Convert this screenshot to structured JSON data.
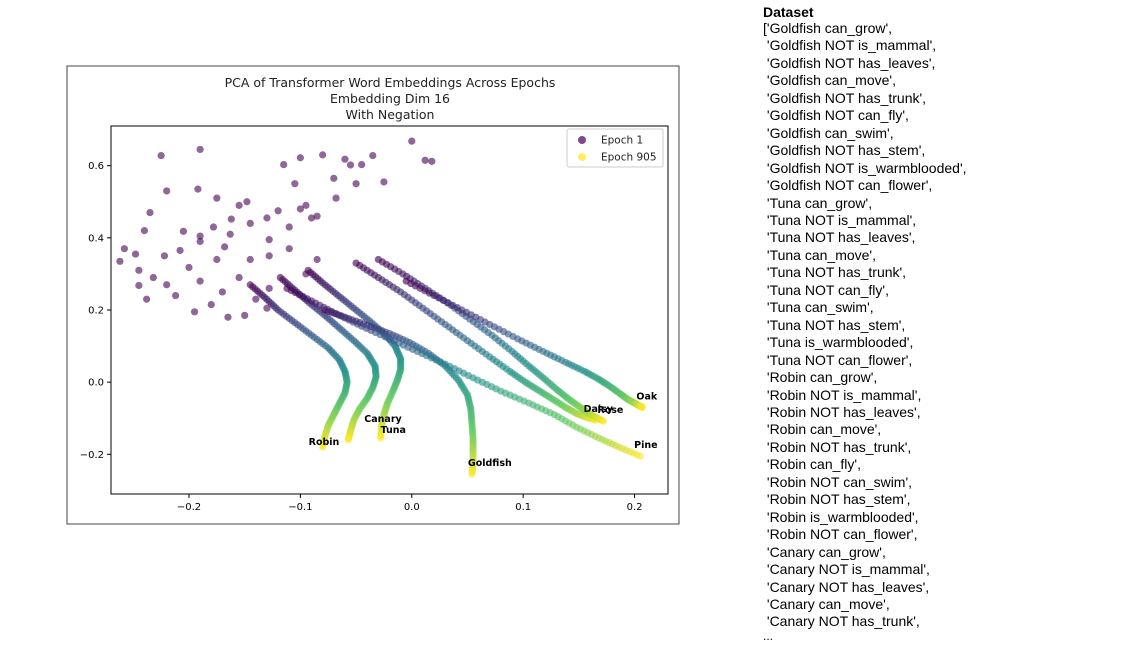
{
  "chart_data": {
    "type": "scatter",
    "title": "PCA of Transformer Word Embeddings Across Epochs",
    "subtitle_lines": [
      "Embedding Dim 16",
      "With Negation"
    ],
    "xlabel": "",
    "ylabel": "",
    "xlim": [
      -0.27,
      0.23
    ],
    "ylim": [
      -0.31,
      0.71
    ],
    "xticks": [
      -0.2,
      -0.1,
      0.0,
      0.1,
      0.2
    ],
    "xtick_labels": [
      "−0.2",
      "−0.1",
      "0.0",
      "0.1",
      "0.2"
    ],
    "yticks": [
      -0.2,
      0.0,
      0.2,
      0.4,
      0.6
    ],
    "ytick_labels": [
      "−0.2",
      "0.0",
      "0.2",
      "0.4",
      "0.6"
    ],
    "grid": false,
    "legend_position": "top-right",
    "legend": [
      {
        "label": "Epoch 1",
        "color": "#440154"
      },
      {
        "label": "Epoch 905",
        "color": "#fde725"
      }
    ],
    "colormap": "viridis",
    "trajectories": [
      {
        "word": "Robin",
        "points": [
          [
            -0.145,
            0.27
          ],
          [
            -0.132,
            0.235
          ],
          [
            -0.12,
            0.2
          ],
          [
            -0.105,
            0.165
          ],
          [
            -0.09,
            0.13
          ],
          [
            -0.075,
            0.095
          ],
          [
            -0.065,
            0.062
          ],
          [
            -0.06,
            0.03
          ],
          [
            -0.058,
            0.0
          ],
          [
            -0.06,
            -0.03
          ],
          [
            -0.065,
            -0.06
          ],
          [
            -0.07,
            -0.09
          ],
          [
            -0.075,
            -0.12
          ],
          [
            -0.078,
            -0.15
          ],
          [
            -0.08,
            -0.18
          ]
        ],
        "label_offset": [
          -14,
          -2
        ]
      },
      {
        "word": "Canary",
        "points": [
          [
            -0.118,
            0.29
          ],
          [
            -0.105,
            0.255
          ],
          [
            -0.092,
            0.22
          ],
          [
            -0.078,
            0.185
          ],
          [
            -0.065,
            0.15
          ],
          [
            -0.052,
            0.115
          ],
          [
            -0.04,
            0.08
          ],
          [
            -0.033,
            0.045
          ],
          [
            -0.032,
            0.015
          ],
          [
            -0.035,
            -0.015
          ],
          [
            -0.04,
            -0.045
          ],
          [
            -0.047,
            -0.075
          ],
          [
            -0.052,
            -0.105
          ],
          [
            -0.055,
            -0.135
          ],
          [
            -0.057,
            -0.16
          ]
        ],
        "label_offset": [
          16,
          -18
        ]
      },
      {
        "word": "Tuna",
        "points": [
          [
            -0.093,
            0.31
          ],
          [
            -0.08,
            0.275
          ],
          [
            -0.066,
            0.24
          ],
          [
            -0.052,
            0.205
          ],
          [
            -0.038,
            0.17
          ],
          [
            -0.025,
            0.135
          ],
          [
            -0.015,
            0.1
          ],
          [
            -0.01,
            0.065
          ],
          [
            -0.01,
            0.035
          ],
          [
            -0.013,
            0.005
          ],
          [
            -0.017,
            -0.025
          ],
          [
            -0.022,
            -0.06
          ],
          [
            -0.025,
            -0.09
          ],
          [
            -0.027,
            -0.12
          ],
          [
            -0.028,
            -0.155
          ]
        ],
        "label_offset": [
          0,
          -5
        ]
      },
      {
        "word": "Goldfish",
        "points": [
          [
            -0.078,
            0.2
          ],
          [
            -0.06,
            0.18
          ],
          [
            -0.04,
            0.158
          ],
          [
            -0.02,
            0.135
          ],
          [
            -0.002,
            0.11
          ],
          [
            0.015,
            0.08
          ],
          [
            0.03,
            0.045
          ],
          [
            0.042,
            0.005
          ],
          [
            0.05,
            -0.035
          ],
          [
            0.053,
            -0.075
          ],
          [
            0.054,
            -0.115
          ],
          [
            0.055,
            -0.155
          ],
          [
            0.055,
            -0.19
          ],
          [
            0.055,
            -0.225
          ],
          [
            0.054,
            -0.255
          ]
        ],
        "label_offset": [
          -4,
          -8
        ]
      },
      {
        "word": "Daisy",
        "points": [
          [
            -0.05,
            0.33
          ],
          [
            -0.03,
            0.29
          ],
          [
            -0.01,
            0.25
          ],
          [
            0.01,
            0.205
          ],
          [
            0.03,
            0.16
          ],
          [
            0.05,
            0.115
          ],
          [
            0.07,
            0.07
          ],
          [
            0.088,
            0.03
          ],
          [
            0.102,
            0.0
          ],
          [
            0.115,
            -0.025
          ],
          [
            0.127,
            -0.048
          ],
          [
            0.138,
            -0.07
          ],
          [
            0.148,
            -0.087
          ],
          [
            0.157,
            -0.098
          ],
          [
            0.165,
            -0.105
          ]
        ],
        "label_offset": [
          -12,
          -8
        ]
      },
      {
        "word": "Rose",
        "points": [
          [
            -0.03,
            0.34
          ],
          [
            -0.008,
            0.3
          ],
          [
            0.012,
            0.26
          ],
          [
            0.032,
            0.22
          ],
          [
            0.052,
            0.175
          ],
          [
            0.072,
            0.13
          ],
          [
            0.09,
            0.085
          ],
          [
            0.105,
            0.045
          ],
          [
            0.118,
            0.012
          ],
          [
            0.13,
            -0.02
          ],
          [
            0.14,
            -0.045
          ],
          [
            0.15,
            -0.067
          ],
          [
            0.158,
            -0.085
          ],
          [
            0.165,
            -0.097
          ],
          [
            0.172,
            -0.108
          ]
        ],
        "label_offset": [
          -6,
          -8
        ]
      },
      {
        "word": "Oak",
        "points": [
          [
            -0.005,
            0.28
          ],
          [
            0.02,
            0.24
          ],
          [
            0.045,
            0.2
          ],
          [
            0.07,
            0.16
          ],
          [
            0.095,
            0.12
          ],
          [
            0.118,
            0.085
          ],
          [
            0.138,
            0.055
          ],
          [
            0.155,
            0.03
          ],
          [
            0.168,
            0.008
          ],
          [
            0.178,
            -0.012
          ],
          [
            0.187,
            -0.032
          ],
          [
            0.194,
            -0.048
          ],
          [
            0.2,
            -0.058
          ],
          [
            0.204,
            -0.065
          ],
          [
            0.207,
            -0.07
          ]
        ],
        "label_offset": [
          -6,
          -8
        ]
      },
      {
        "word": "Pine",
        "points": [
          [
            -0.112,
            0.26
          ],
          [
            -0.09,
            0.225
          ],
          [
            -0.068,
            0.19
          ],
          [
            -0.045,
            0.155
          ],
          [
            -0.02,
            0.12
          ],
          [
            0.005,
            0.085
          ],
          [
            0.03,
            0.05
          ],
          [
            0.055,
            0.012
          ],
          [
            0.08,
            -0.025
          ],
          [
            0.105,
            -0.058
          ],
          [
            0.128,
            -0.09
          ],
          [
            0.148,
            -0.125
          ],
          [
            0.168,
            -0.155
          ],
          [
            0.186,
            -0.18
          ],
          [
            0.205,
            -0.205
          ]
        ],
        "label_offset": [
          -6,
          -8
        ]
      }
    ],
    "epoch1_scatter": [
      [
        -0.225,
        0.628
      ],
      [
        -0.19,
        0.645
      ],
      [
        -0.1,
        0.622
      ],
      [
        -0.08,
        0.63
      ],
      [
        -0.06,
        0.618
      ],
      [
        -0.035,
        0.628
      ],
      [
        0.0,
        0.668
      ],
      [
        0.012,
        0.615
      ],
      [
        0.018,
        0.612
      ],
      [
        -0.115,
        0.603
      ],
      [
        -0.105,
        0.55
      ],
      [
        -0.095,
        0.49
      ],
      [
        -0.09,
        0.455
      ],
      [
        -0.07,
        0.565
      ],
      [
        -0.068,
        0.51
      ],
      [
        -0.055,
        0.602
      ],
      [
        -0.05,
        0.55
      ],
      [
        -0.045,
        0.603
      ],
      [
        -0.025,
        0.555
      ],
      [
        -0.22,
        0.53
      ],
      [
        -0.192,
        0.535
      ],
      [
        -0.175,
        0.51
      ],
      [
        -0.162,
        0.452
      ],
      [
        -0.155,
        0.49
      ],
      [
        -0.148,
        0.5
      ],
      [
        -0.13,
        0.455
      ],
      [
        -0.12,
        0.475
      ],
      [
        -0.11,
        0.43
      ],
      [
        -0.1,
        0.48
      ],
      [
        -0.085,
        0.46
      ],
      [
        -0.235,
        0.47
      ],
      [
        -0.24,
        0.42
      ],
      [
        -0.205,
        0.418
      ],
      [
        -0.178,
        0.43
      ],
      [
        -0.19,
        0.405
      ],
      [
        -0.163,
        0.41
      ],
      [
        -0.145,
        0.44
      ],
      [
        -0.128,
        0.395
      ],
      [
        -0.258,
        0.37
      ],
      [
        -0.248,
        0.355
      ],
      [
        -0.262,
        0.335
      ],
      [
        -0.245,
        0.31
      ],
      [
        -0.222,
        0.35
      ],
      [
        -0.208,
        0.365
      ],
      [
        -0.19,
        0.39
      ],
      [
        -0.175,
        0.34
      ],
      [
        -0.168,
        0.375
      ],
      [
        -0.145,
        0.34
      ],
      [
        -0.128,
        0.35
      ],
      [
        -0.11,
        0.37
      ],
      [
        -0.095,
        0.3
      ],
      [
        -0.085,
        0.34
      ],
      [
        -0.245,
        0.268
      ],
      [
        -0.232,
        0.29
      ],
      [
        -0.22,
        0.27
      ],
      [
        -0.2,
        0.318
      ],
      [
        -0.19,
        0.28
      ],
      [
        -0.17,
        0.25
      ],
      [
        -0.155,
        0.29
      ],
      [
        -0.14,
        0.23
      ],
      [
        -0.128,
        0.26
      ],
      [
        -0.238,
        0.23
      ],
      [
        -0.212,
        0.24
      ],
      [
        -0.195,
        0.195
      ],
      [
        -0.18,
        0.215
      ],
      [
        -0.165,
        0.18
      ],
      [
        -0.15,
        0.185
      ],
      [
        -0.13,
        0.205
      ]
    ]
  },
  "dataset": {
    "title": "Dataset",
    "items": [
      "['Goldfish can_grow',",
      " 'Goldfish NOT is_mammal',",
      " 'Goldfish NOT has_leaves',",
      " 'Goldfish can_move',",
      " 'Goldfish NOT has_trunk',",
      " 'Goldfish NOT can_fly',",
      " 'Goldfish can_swim',",
      " 'Goldfish NOT has_stem',",
      " 'Goldfish NOT is_warmblooded',",
      " 'Goldfish NOT can_flower',",
      " 'Tuna can_grow',",
      " 'Tuna NOT is_mammal',",
      " 'Tuna NOT has_leaves',",
      " 'Tuna can_move',",
      " 'Tuna NOT has_trunk',",
      " 'Tuna NOT can_fly',",
      " 'Tuna can_swim',",
      " 'Tuna NOT has_stem',",
      " 'Tuna is_warmblooded',",
      " 'Tuna NOT can_flower',",
      " 'Robin can_grow',",
      " 'Robin NOT is_mammal',",
      " 'Robin NOT has_leaves',",
      " 'Robin can_move',",
      " 'Robin NOT has_trunk',",
      " 'Robin can_fly',",
      " 'Robin NOT can_swim',",
      " 'Robin NOT has_stem',",
      " 'Robin is_warmblooded',",
      " 'Robin NOT can_flower',",
      " 'Canary can_grow',",
      " 'Canary NOT is_mammal',",
      " 'Canary NOT has_leaves',",
      " 'Canary can_move',",
      " 'Canary NOT has_trunk',"
    ],
    "ellipsis": "..."
  }
}
